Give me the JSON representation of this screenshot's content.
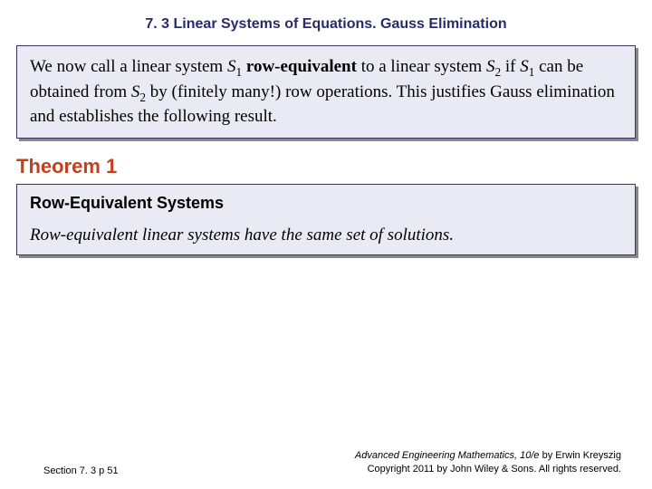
{
  "header": {
    "title": "7. 3 Linear Systems of Equations.  Gauss Elimination"
  },
  "box1": {
    "p1_a": "We now call a linear system ",
    "p1_s1": "S",
    "p1_sub1": "1",
    "p1_b": " ",
    "p1_bold": "row-equivalent",
    "p1_c": " to a linear system ",
    "p1_s2": "S",
    "p1_sub2": "2",
    "p1_d": " if ",
    "p1_s3": "S",
    "p1_sub3": "1",
    "p1_e": " can be obtained from ",
    "p1_s4": "S",
    "p1_sub4": "2",
    "p1_f": " by (finitely many!) row operations. This justifies Gauss elimination and establishes the following result."
  },
  "theorem": {
    "heading": "Theorem 1"
  },
  "box2": {
    "title": "Row-Equivalent Systems",
    "body": "Row-equivalent linear systems have the same set of solutions."
  },
  "footer": {
    "left": "Section 7. 3  p 51",
    "right_line1": "Advanced Engineering Mathematics, 10/e by Erwin Kreyszig",
    "right_line2": "Copyright 2011 by John Wiley & Sons. All rights reserved."
  },
  "colors": {
    "header_text": "#2a2a6a",
    "box_bg": "#eaeaf4",
    "box_border": "#333366",
    "box_shadow": "#888888",
    "theorem_heading": "#c04020",
    "body_text": "#000000",
    "page_bg": "#ffffff"
  }
}
